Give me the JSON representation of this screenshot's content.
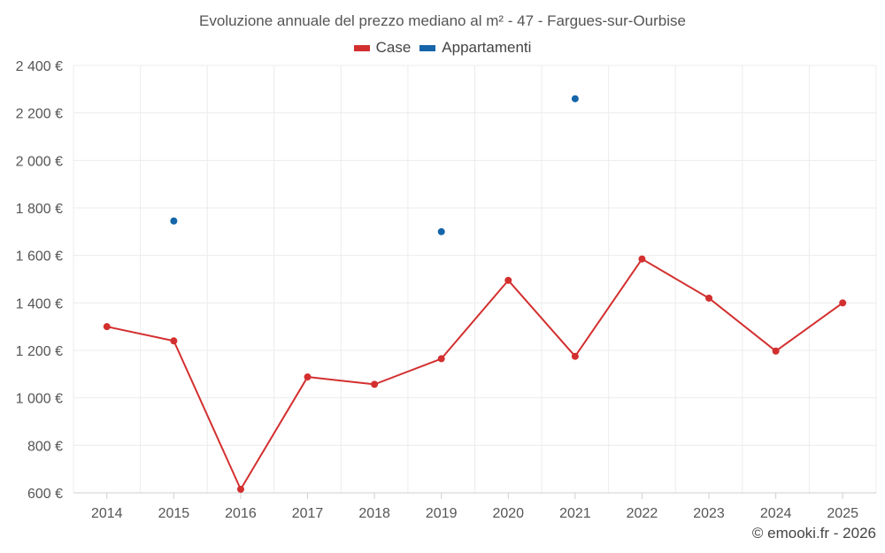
{
  "chart_data": {
    "type": "line",
    "title": "Evoluzione annuale del prezzo mediano al m² - 47 - Fargues-sur-Ourbise",
    "categories": [
      "2014",
      "2015",
      "2016",
      "2017",
      "2018",
      "2019",
      "2020",
      "2021",
      "2022",
      "2023",
      "2024",
      "2025"
    ],
    "series": [
      {
        "name": "Case",
        "color": "#d32f2f",
        "values": [
          1300,
          1240,
          615,
          1088,
          1057,
          1165,
          1495,
          1175,
          1585,
          1420,
          1197,
          1400
        ]
      },
      {
        "name": "Appartamenti",
        "color": "#1565a8",
        "values": [
          null,
          1745,
          null,
          null,
          null,
          1700,
          null,
          2260,
          null,
          null,
          null,
          null
        ]
      }
    ],
    "ylim": [
      600,
      2400
    ],
    "yticks": [
      600,
      800,
      1000,
      1200,
      1400,
      1600,
      1800,
      2000,
      2200,
      2400
    ],
    "ytick_labels": [
      "600 €",
      "800 €",
      "1 000 €",
      "1 200 €",
      "1 400 €",
      "1 600 €",
      "1 800 €",
      "2 000 €",
      "2 200 €",
      "2 400 €"
    ],
    "xlabel": "",
    "ylabel": "",
    "grid": true,
    "legend": "top-center"
  },
  "credit": "© emooki.fr - 2026"
}
